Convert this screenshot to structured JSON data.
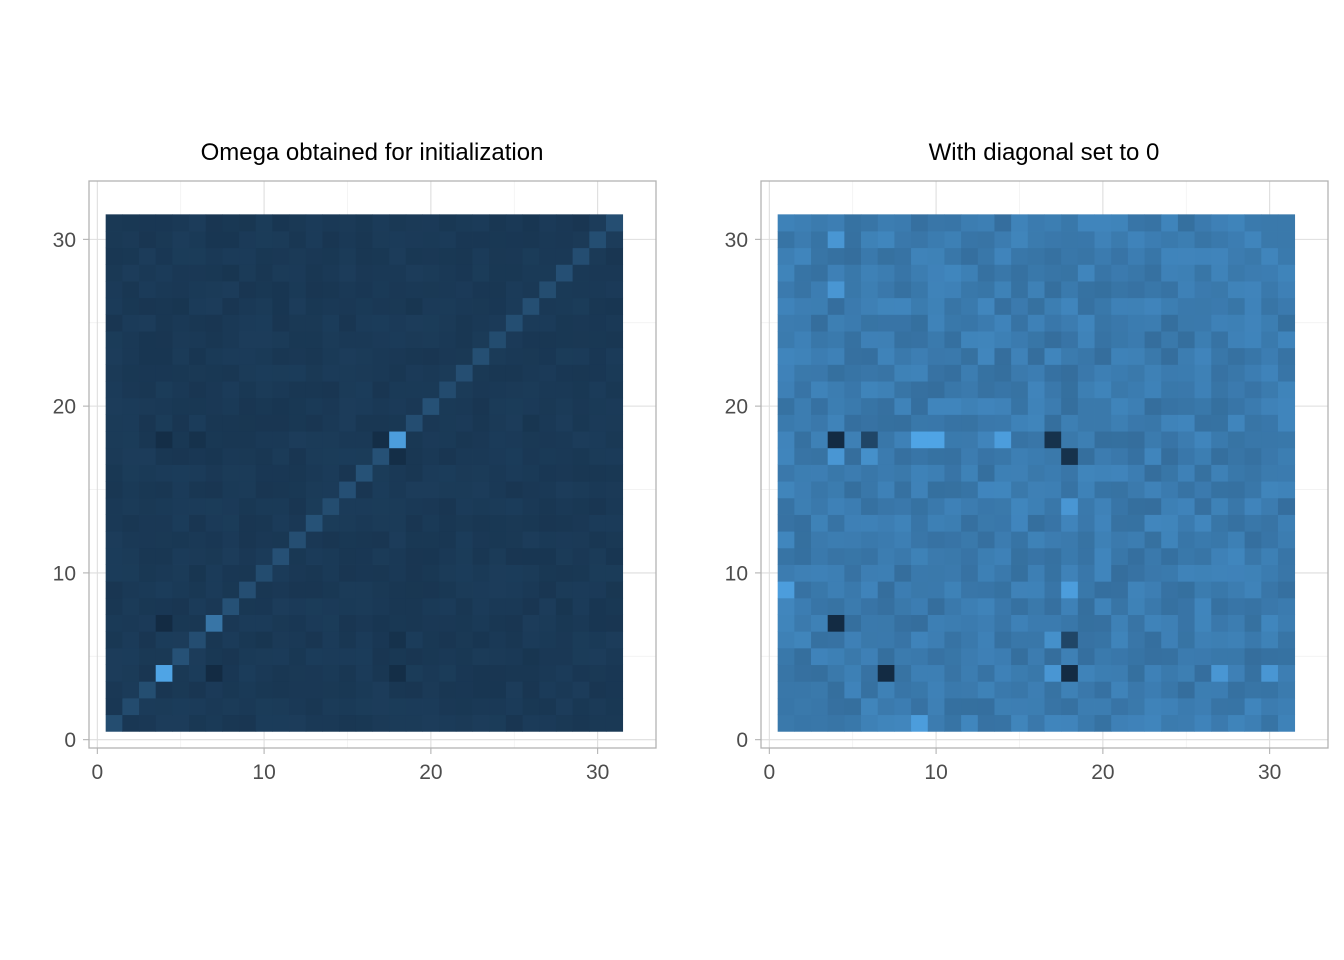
{
  "chart_data": [
    {
      "type": "heatmap",
      "title": "Omega obtained for initialization",
      "xlabel": "",
      "ylabel": "",
      "xlim": [
        -0.5,
        33.5
      ],
      "ylim": [
        -0.5,
        33.5
      ],
      "x_ticks": [
        0,
        10,
        20,
        30
      ],
      "y_ticks": [
        0,
        10,
        20,
        30
      ],
      "x_tick_labels": [
        "0",
        "10",
        "20",
        "30"
      ],
      "y_tick_labels": [
        "0",
        "10",
        "20",
        "30"
      ],
      "grid": true,
      "legend": "none",
      "matrix_size": 31,
      "color_low": "#132b43",
      "color_high": "#56b1f7",
      "matrix_pattern": "diagonal-high",
      "highlights": [
        {
          "row": 4,
          "col": 4,
          "value": 0.9
        },
        {
          "row": 18,
          "col": 18,
          "value": 0.85
        },
        {
          "row": 7,
          "col": 7,
          "value": 0.55
        },
        {
          "row": 4,
          "col": 7,
          "value": 0.0
        },
        {
          "row": 7,
          "col": 4,
          "value": 0.0
        },
        {
          "row": 4,
          "col": 18,
          "value": 0.02
        },
        {
          "row": 18,
          "col": 4,
          "value": 0.02
        },
        {
          "row": 17,
          "col": 18,
          "value": 0.02
        },
        {
          "row": 18,
          "col": 17,
          "value": 0.02
        },
        {
          "row": 6,
          "col": 18,
          "value": 0.05
        },
        {
          "row": 18,
          "col": 6,
          "value": 0.05
        }
      ]
    },
    {
      "type": "heatmap",
      "title": "With diagonal set to 0",
      "xlabel": "",
      "ylabel": "",
      "xlim": [
        -0.5,
        33.5
      ],
      "ylim": [
        -0.5,
        33.5
      ],
      "x_ticks": [
        0,
        10,
        20,
        30
      ],
      "y_ticks": [
        0,
        10,
        20,
        30
      ],
      "x_tick_labels": [
        "0",
        "10",
        "20",
        "30"
      ],
      "y_tick_labels": [
        "0",
        "10",
        "20",
        "30"
      ],
      "grid": true,
      "legend": "none",
      "matrix_size": 31,
      "color_low": "#132b43",
      "color_high": "#56b1f7",
      "matrix_pattern": "diagonal-zero",
      "highlights": [
        {
          "row": 4,
          "col": 7,
          "value": 0.0
        },
        {
          "row": 7,
          "col": 4,
          "value": 0.0
        },
        {
          "row": 4,
          "col": 18,
          "value": 0.0
        },
        {
          "row": 18,
          "col": 4,
          "value": 0.0
        },
        {
          "row": 17,
          "col": 18,
          "value": 0.05
        },
        {
          "row": 18,
          "col": 17,
          "value": 0.05
        },
        {
          "row": 6,
          "col": 18,
          "value": 0.2
        },
        {
          "row": 18,
          "col": 6,
          "value": 0.2
        },
        {
          "row": 18,
          "col": 9,
          "value": 0.9
        },
        {
          "row": 18,
          "col": 10,
          "value": 0.9
        },
        {
          "row": 18,
          "col": 14,
          "value": 0.85
        },
        {
          "row": 9,
          "col": 18,
          "value": 0.85
        },
        {
          "row": 14,
          "col": 18,
          "value": 0.8
        },
        {
          "row": 4,
          "col": 17,
          "value": 0.8
        },
        {
          "row": 17,
          "col": 4,
          "value": 0.8
        },
        {
          "row": 1,
          "col": 9,
          "value": 0.85
        },
        {
          "row": 9,
          "col": 1,
          "value": 0.85
        },
        {
          "row": 30,
          "col": 4,
          "value": 0.8
        },
        {
          "row": 4,
          "col": 30,
          "value": 0.8
        },
        {
          "row": 27,
          "col": 4,
          "value": 0.8
        },
        {
          "row": 4,
          "col": 27,
          "value": 0.8
        },
        {
          "row": 17,
          "col": 6,
          "value": 0.75
        },
        {
          "row": 6,
          "col": 17,
          "value": 0.75
        }
      ]
    }
  ]
}
